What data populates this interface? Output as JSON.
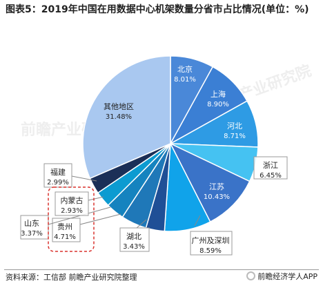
{
  "title": "图表5：2019年中国在用数据中心机架数量分省市占比情况(单位：%)",
  "watermark": "前瞻产业研究院",
  "source": "资料来源：工信部 前瞻产业研究院整理",
  "brand": "前瞻经济学人APP",
  "chart_data": {
    "type": "pie",
    "title": "图表5：2019年中国在用数据中心机架数量分省市占比情况(单位：%)",
    "unit": "%",
    "slices": [
      {
        "label": "北京",
        "value": 8.01,
        "color": "#4a88d8"
      },
      {
        "label": "上海",
        "value": 8.9,
        "color": "#3b7fd4"
      },
      {
        "label": "河北",
        "value": 8.71,
        "color": "#2e9be4"
      },
      {
        "label": "浙江",
        "value": 6.45,
        "color": "#45c2f2"
      },
      {
        "label": "江苏",
        "value": 10.43,
        "color": "#3a73c8"
      },
      {
        "label": "广州及深圳",
        "value": 8.59,
        "color": "#10a3ea"
      },
      {
        "label": "湖北",
        "value": 3.43,
        "color": "#1f4f96"
      },
      {
        "label": "贵州",
        "value": 4.71,
        "color": "#1f78b8"
      },
      {
        "label": "山东",
        "value": 3.37,
        "color": "#1583bf"
      },
      {
        "label": "内蒙古",
        "value": 2.93,
        "color": "#0c9bd1"
      },
      {
        "label": "福建",
        "value": 2.99,
        "color": "#1b2f57"
      },
      {
        "label": "其他地区",
        "value": 31.48,
        "color": "#a9c8f0"
      }
    ]
  }
}
